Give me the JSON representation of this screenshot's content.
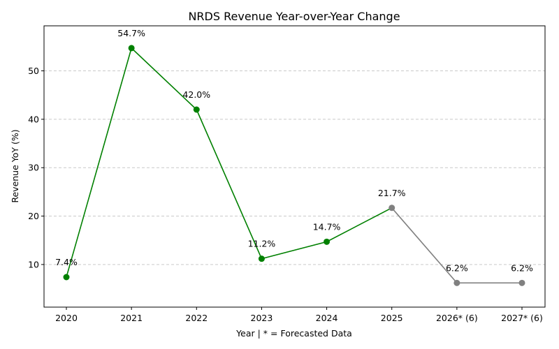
{
  "chart_data": {
    "type": "line",
    "title": "NRDS Revenue Year-over-Year Change",
    "xlabel": "Year | * = Forecasted Data",
    "ylabel": "Revenue YoY (%)",
    "categories": [
      "2020",
      "2021",
      "2022",
      "2023",
      "2024",
      "2025",
      "2026* (6)",
      "2027* (6)"
    ],
    "values": [
      7.4,
      54.7,
      42.0,
      11.2,
      14.7,
      21.7,
      6.2,
      6.2
    ],
    "data_labels": [
      "7.4%",
      "54.7%",
      "42.0%",
      "11.2%",
      "14.7%",
      "21.7%",
      "6.2%",
      "6.2%"
    ],
    "actual_count": 6,
    "yticks": [
      10,
      20,
      30,
      40,
      50
    ],
    "ylim": [
      1.2,
      59.3
    ],
    "grid": "horizontal dashed",
    "colors": {
      "actual": "#008000",
      "forecast": "#808080",
      "grid": "#c8c8c8"
    }
  }
}
